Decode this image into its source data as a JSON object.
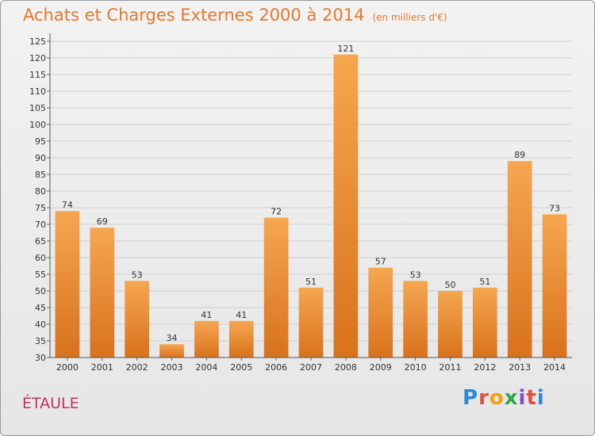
{
  "title": "Achats et Charges Externes 2000 à 2014",
  "unit_note": "(en milliers d'€)",
  "town": "ÉTAULE",
  "brand": "Proxiti",
  "colors": {
    "bar_top": "#f6a650",
    "bar_bottom": "#d9721c",
    "title": "#e8772a",
    "town": "#c2305f"
  },
  "chart_data": {
    "type": "bar",
    "categories": [
      "2000",
      "2001",
      "2002",
      "2003",
      "2004",
      "2005",
      "2006",
      "2007",
      "2008",
      "2009",
      "2010",
      "2011",
      "2012",
      "2013",
      "2014"
    ],
    "values": [
      74,
      69,
      53,
      34,
      41,
      41,
      72,
      51,
      121,
      57,
      53,
      50,
      51,
      89,
      73
    ],
    "ylim": [
      30,
      125
    ],
    "ytick_step": 5,
    "grid": true,
    "data_labels": true
  }
}
